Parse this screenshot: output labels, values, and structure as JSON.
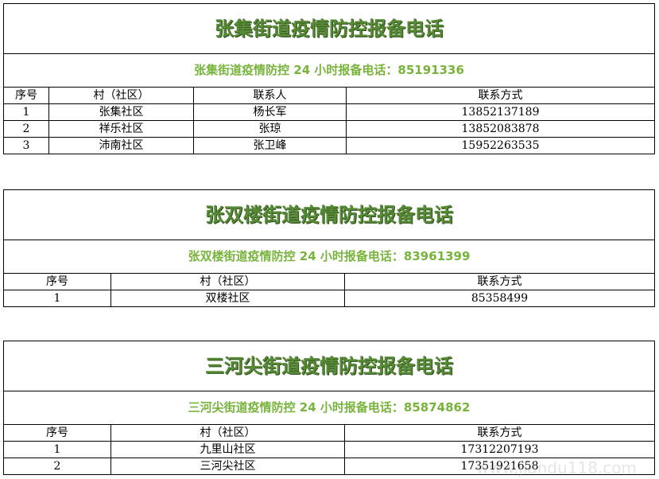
{
  "tables": [
    {
      "title": "张集街道疫情防控报备电话",
      "subtitle": "张集街道疫情防控 24 小时报备电话：85191336",
      "headers": [
        "序号",
        "村（社区）",
        "联系人",
        "联系方式"
      ],
      "rows": [
        [
          "1",
          "张集社区",
          "杨长军",
          "13852137189"
        ],
        [
          "2",
          "祥乐社区",
          "张琼",
          "13852083878"
        ],
        [
          "3",
          "沛南社区",
          "张卫峰",
          "15952263535"
        ]
      ]
    },
    {
      "title": "张双楼街道疫情防控报备电话",
      "subtitle": "张双楼街道疫情防控 24 小时报备电话：83961399",
      "headers": [
        "序号",
        "村（社区）",
        "联系方式"
      ],
      "rows": [
        [
          "1",
          "双楼社区",
          "85358499"
        ]
      ]
    },
    {
      "title": "三河尖街道疫情防控报备电话",
      "subtitle": "三河尖街道疫情防控 24 小时报备电话：85874862",
      "headers": [
        "序号",
        "村（社区）",
        "联系方式"
      ],
      "rows": [
        [
          "1",
          "九里山社区",
          "17312207193"
        ],
        [
          "2",
          "三河尖社区",
          "17351921658"
        ]
      ]
    }
  ],
  "watermark": "www.jiandu118.com"
}
